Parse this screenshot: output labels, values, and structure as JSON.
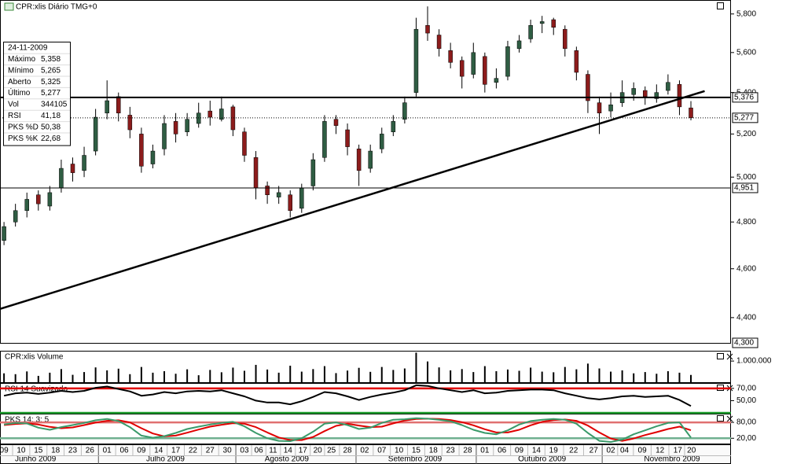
{
  "chart_data": [
    {
      "type": "candlestick",
      "title": "CPR:xlis Diário TMG+0",
      "x": [
        0,
        2,
        4,
        6,
        8,
        10,
        12,
        14,
        16,
        18,
        20,
        22,
        24,
        26,
        28,
        30,
        32,
        34,
        36,
        38,
        40,
        42,
        44,
        46,
        48,
        50,
        52,
        54,
        56,
        58,
        60,
        62,
        64,
        66,
        68,
        70,
        72,
        74,
        76,
        78,
        80,
        82,
        84,
        86,
        88,
        90,
        92,
        94,
        96,
        98,
        100,
        102,
        104,
        106,
        108,
        110,
        112,
        114,
        116,
        118,
        120
      ],
      "open": [
        4.72,
        4.8,
        4.85,
        4.92,
        4.87,
        4.95,
        5.06,
        5.03,
        5.12,
        5.3,
        5.38,
        5.29,
        5.2,
        5.06,
        5.13,
        5.26,
        5.21,
        5.25,
        5.31,
        5.27,
        5.33,
        5.21,
        5.09,
        4.96,
        4.91,
        4.92,
        4.86,
        4.96,
        5.09,
        5.27,
        5.22,
        5.13,
        5.04,
        5.13,
        5.21,
        5.27,
        5.4,
        5.74,
        5.69,
        5.61,
        5.56,
        5.49,
        5.58,
        5.45,
        5.48,
        5.62,
        5.67,
        5.75,
        5.77,
        5.72,
        5.61,
        5.49,
        5.35,
        5.31,
        5.35,
        5.39,
        5.41,
        5.37,
        5.41,
        5.44,
        5.325
      ],
      "high": [
        4.8,
        4.88,
        4.93,
        4.94,
        4.96,
        5.08,
        5.09,
        5.14,
        5.32,
        5.46,
        5.4,
        5.33,
        5.23,
        5.15,
        5.29,
        5.3,
        5.3,
        5.35,
        5.36,
        5.38,
        5.34,
        5.23,
        5.12,
        4.98,
        4.96,
        4.94,
        4.97,
        5.11,
        5.29,
        5.29,
        5.25,
        5.15,
        5.15,
        5.23,
        5.29,
        5.38,
        5.78,
        5.84,
        5.72,
        5.65,
        5.58,
        5.65,
        5.6,
        5.52,
        5.66,
        5.69,
        5.77,
        5.79,
        5.78,
        5.74,
        5.63,
        5.51,
        5.38,
        5.4,
        5.46,
        5.45,
        5.43,
        5.44,
        5.49,
        5.46,
        5.358
      ],
      "low": [
        4.7,
        4.78,
        4.82,
        4.85,
        4.85,
        4.93,
        4.98,
        5.0,
        5.1,
        5.27,
        5.26,
        5.18,
        5.02,
        5.04,
        5.1,
        5.16,
        5.19,
        5.23,
        5.24,
        5.26,
        5.19,
        5.07,
        4.9,
        4.88,
        4.88,
        4.82,
        4.84,
        4.94,
        5.07,
        5.2,
        5.1,
        4.96,
        5.02,
        5.11,
        5.19,
        5.25,
        5.38,
        5.66,
        5.58,
        5.52,
        5.42,
        5.47,
        5.4,
        5.42,
        5.46,
        5.6,
        5.65,
        5.7,
        5.69,
        5.58,
        5.46,
        5.3,
        5.2,
        5.28,
        5.33,
        5.36,
        5.34,
        5.35,
        5.39,
        5.29,
        5.265
      ],
      "close": [
        4.78,
        4.85,
        4.9,
        4.88,
        4.93,
        5.04,
        5.02,
        5.1,
        5.28,
        5.36,
        5.3,
        5.22,
        5.05,
        5.12,
        5.25,
        5.2,
        5.27,
        5.3,
        5.28,
        5.32,
        5.22,
        5.1,
        4.95,
        4.92,
        4.93,
        4.85,
        4.95,
        5.08,
        5.26,
        5.24,
        5.14,
        5.03,
        5.12,
        5.2,
        5.26,
        5.35,
        5.72,
        5.7,
        5.62,
        5.55,
        5.48,
        5.6,
        5.44,
        5.47,
        5.63,
        5.66,
        5.74,
        5.76,
        5.73,
        5.62,
        5.5,
        5.36,
        5.3,
        5.34,
        5.4,
        5.42,
        5.38,
        5.4,
        5.45,
        5.33,
        5.277
      ],
      "up_color": "#2f5d43",
      "down_color": "#8c1c1c",
      "log_scale": true,
      "xlim": [
        -0.7,
        127
      ],
      "ylim": [
        4.3,
        5.87
      ],
      "yticks": [
        {
          "value": 4.4,
          "label": "4,400"
        },
        {
          "value": 4.6,
          "label": "4,600"
        },
        {
          "value": 4.8,
          "label": "4,800"
        },
        {
          "value": 5.0,
          "label": "5,000"
        },
        {
          "value": 5.2,
          "label": "5,200"
        },
        {
          "value": 5.4,
          "label": "5,400"
        },
        {
          "value": 5.6,
          "label": "5,600"
        },
        {
          "value": 5.8,
          "label": "5,800"
        }
      ],
      "hlines": [
        {
          "value": 5.376,
          "label": "5,376"
        },
        {
          "value": 4.951,
          "label": "4,951"
        }
      ],
      "last_label": "5,277",
      "ylim_label": "4,300",
      "trendline": {
        "x": [
          -0.7,
          122.4
        ],
        "y": [
          4.435,
          5.407
        ]
      }
    },
    {
      "type": "bar",
      "title": "CPR:xlis Volume",
      "values": [
        420000,
        380000,
        510000,
        300000,
        450000,
        620000,
        350000,
        480000,
        700000,
        560000,
        640000,
        380000,
        720000,
        450000,
        520000,
        400000,
        610000,
        330000,
        580000,
        470000,
        690000,
        540000,
        820000,
        600000,
        450000,
        780000,
        500000,
        620000,
        760000,
        430000,
        550000,
        680000,
        490000,
        720000,
        580000,
        650000,
        1400000,
        980000,
        700000,
        560000,
        620000,
        480000,
        760000,
        520000,
        600000,
        540000,
        690000,
        500000,
        470000,
        720000,
        610000,
        880000,
        650000,
        500000,
        560000,
        420000,
        480000,
        400000,
        520000,
        450000,
        344105
      ],
      "color": "#000000",
      "ylim": [
        0,
        1450000
      ],
      "yticks": [
        {
          "value": 1000000,
          "label": "1.000.000"
        }
      ]
    },
    {
      "type": "line",
      "title": "RSI 14 Suavizado",
      "values": [
        58,
        62,
        63,
        61,
        63,
        66,
        64,
        66,
        71,
        73,
        69,
        65,
        58,
        60,
        64,
        62,
        65,
        66,
        65,
        67,
        62,
        57,
        50,
        47,
        47,
        44,
        49,
        56,
        64,
        62,
        57,
        51,
        56,
        60,
        63,
        67,
        75,
        74,
        70,
        67,
        64,
        67,
        62,
        63,
        66,
        67,
        68,
        68,
        67,
        62,
        58,
        54,
        52,
        54,
        57,
        58,
        56,
        57,
        58,
        51,
        41.18
      ],
      "color": "#000000",
      "ylim": [
        30,
        77.5
      ],
      "yticks": [
        {
          "value": 50,
          "label": "50,00"
        },
        {
          "value": 70,
          "label": "70,00"
        }
      ],
      "hlines": [
        {
          "value": 70,
          "color": "#e00000"
        },
        {
          "value": 30,
          "color": "#1a9a2a"
        }
      ]
    },
    {
      "type": "line",
      "title": "PKS 14; 3; 5",
      "series": [
        {
          "color": "#e00000",
          "values": [
            70,
            74,
            76,
            72,
            63,
            58,
            61,
            70,
            79,
            86,
            88,
            80,
            58,
            38,
            27,
            30,
            41,
            53,
            64,
            71,
            77,
            75,
            62,
            42,
            23,
            13,
            13,
            25,
            47,
            67,
            75,
            68,
            62,
            64,
            76,
            87,
            93,
            94,
            93,
            89,
            81,
            69,
            54,
            42,
            42,
            52,
            69,
            82,
            89,
            91,
            86,
            68,
            42,
            19,
            10,
            19,
            32,
            43,
            55,
            64,
            50.38
          ]
        },
        {
          "color": "#3a9a6a",
          "values": [
            72,
            78,
            76,
            60,
            52,
            62,
            70,
            78,
            88,
            93,
            85,
            62,
            30,
            22,
            28,
            40,
            55,
            64,
            72,
            78,
            82,
            65,
            40,
            20,
            10,
            9,
            20,
            45,
            75,
            80,
            70,
            55,
            60,
            78,
            90,
            92,
            96,
            94,
            90,
            84,
            70,
            52,
            40,
            35,
            50,
            72,
            85,
            90,
            93,
            90,
            75,
            40,
            10,
            6,
            15,
            35,
            50,
            65,
            78,
            80,
            22.68
          ]
        }
      ],
      "ylim": [
        0,
        110
      ],
      "yticks": [
        {
          "value": 20,
          "label": "20,00"
        },
        {
          "value": 80,
          "label": "80,00"
        }
      ],
      "hlines": [
        {
          "value": 80,
          "color": "#e07070"
        },
        {
          "value": 20,
          "color": "#70b090"
        }
      ]
    }
  ],
  "x_axis": {
    "xticks": [
      {
        "value": 0,
        "label": "09"
      },
      {
        "value": 3,
        "label": "10"
      },
      {
        "value": 6,
        "label": "15"
      },
      {
        "value": 9,
        "label": "18"
      },
      {
        "value": 12,
        "label": "23"
      },
      {
        "value": 15,
        "label": "26"
      },
      {
        "value": 18,
        "label": "01"
      },
      {
        "value": 21,
        "label": "06"
      },
      {
        "value": 24,
        "label": "09"
      },
      {
        "value": 27,
        "label": "14"
      },
      {
        "value": 30,
        "label": "17"
      },
      {
        "value": 33,
        "label": "22"
      },
      {
        "value": 36,
        "label": "27"
      },
      {
        "value": 39,
        "label": "30"
      },
      {
        "value": 42,
        "label": "03"
      },
      {
        "value": 44.5,
        "label": "06"
      },
      {
        "value": 47,
        "label": "11"
      },
      {
        "value": 49.6,
        "label": "14"
      },
      {
        "value": 52.2,
        "label": "17"
      },
      {
        "value": 54.8,
        "label": "20"
      },
      {
        "value": 57.2,
        "label": "25"
      },
      {
        "value": 60,
        "label": "28"
      },
      {
        "value": 63,
        "label": "02"
      },
      {
        "value": 66,
        "label": "07"
      },
      {
        "value": 69,
        "label": "10"
      },
      {
        "value": 72,
        "label": "15"
      },
      {
        "value": 75,
        "label": "18"
      },
      {
        "value": 78,
        "label": "23"
      },
      {
        "value": 81,
        "label": "28"
      },
      {
        "value": 84,
        "label": "01"
      },
      {
        "value": 87,
        "label": "06"
      },
      {
        "value": 90,
        "label": "09"
      },
      {
        "value": 93,
        "label": "14"
      },
      {
        "value": 96,
        "label": "19"
      },
      {
        "value": 99.5,
        "label": "22"
      },
      {
        "value": 103,
        "label": "27"
      },
      {
        "value": 106,
        "label": "02"
      },
      {
        "value": 108.4,
        "label": "04"
      },
      {
        "value": 111.5,
        "label": "09"
      },
      {
        "value": 114.6,
        "label": "12"
      },
      {
        "value": 117.7,
        "label": "17"
      },
      {
        "value": 120.1,
        "label": "20"
      }
    ],
    "months": [
      {
        "value": 5.5,
        "label": "Junho 2009"
      },
      {
        "value": 28.2,
        "label": "Julho 2009"
      },
      {
        "value": 49.4,
        "label": "Agosto 2009"
      },
      {
        "value": 71.8,
        "label": "Setembro 2009"
      },
      {
        "value": 94,
        "label": "Outubro 2009"
      },
      {
        "value": 116.7,
        "label": "Novembro 2009"
      }
    ]
  },
  "info": {
    "date": "24-11-2009",
    "rows": [
      {
        "label": "Máximo",
        "value": "5,358"
      },
      {
        "label": "Mínimo",
        "value": "5,265"
      },
      {
        "label": "Aberto",
        "value": "5,325"
      },
      {
        "label": "Último",
        "value": "5,277"
      },
      {
        "label": "Vol",
        "value": "344105"
      },
      {
        "label": "RSI",
        "value": "41,18"
      },
      {
        "label": "PKS %D",
        "value": "50,38",
        "color": "#d02020"
      },
      {
        "label": "PKS %K",
        "value": "22,68",
        "color": "#2a8a5a"
      }
    ]
  }
}
